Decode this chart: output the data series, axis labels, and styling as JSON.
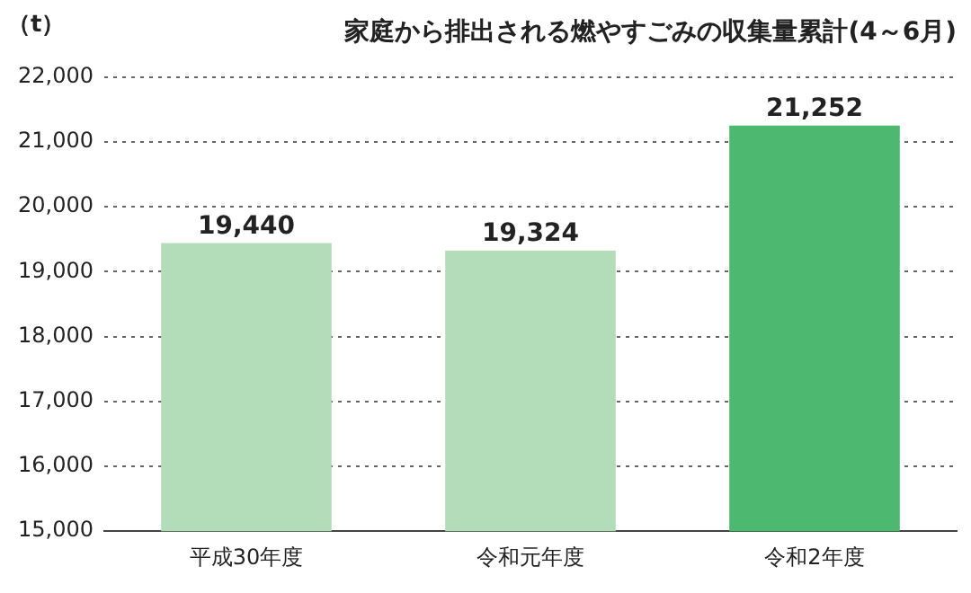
{
  "chart_data": {
    "type": "bar",
    "title": "家庭から排出される燃やすごみの収集量累計(4～6月)",
    "ylabel": "（t）",
    "categories": [
      "平成30年度",
      "令和元年度",
      "令和2年度"
    ],
    "values": [
      19440,
      19324,
      21252
    ],
    "colors": [
      "#b3dcb9",
      "#b3dcb9",
      "#4cb870"
    ],
    "value_labels": [
      "19,440",
      "19,324",
      "21,252"
    ],
    "ylim": [
      15000,
      22000
    ],
    "yticks": [
      {
        "value": 15000,
        "label": "15,000"
      },
      {
        "value": 16000,
        "label": "16,000"
      },
      {
        "value": 17000,
        "label": "17,000"
      },
      {
        "value": 18000,
        "label": "18,000"
      },
      {
        "value": 19000,
        "label": "19,000"
      },
      {
        "value": 20000,
        "label": "20,000"
      },
      {
        "value": 21000,
        "label": "21,000"
      },
      {
        "value": 22000,
        "label": "22,000"
      }
    ],
    "grid": "y"
  }
}
